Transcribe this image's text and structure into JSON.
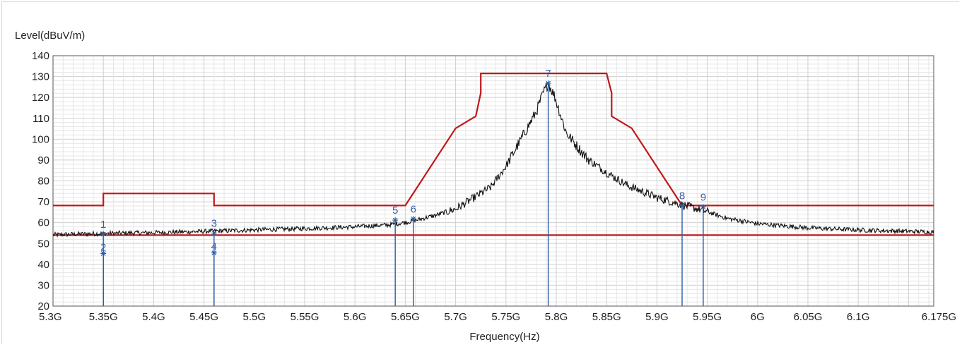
{
  "chart_data": {
    "type": "line",
    "ylabel": "Level(dBuV/m)",
    "xlabel": "Frequency(Hz)",
    "xlim": [
      5.3,
      6.175
    ],
    "ylim": [
      20,
      140
    ],
    "grid": true,
    "y_ticks": [
      {
        "value": 20,
        "label": "20"
      },
      {
        "value": 30,
        "label": "30"
      },
      {
        "value": 40,
        "label": "40"
      },
      {
        "value": 50,
        "label": "50"
      },
      {
        "value": 60,
        "label": "60"
      },
      {
        "value": 70,
        "label": "70"
      },
      {
        "value": 80,
        "label": "80"
      },
      {
        "value": 90,
        "label": "90"
      },
      {
        "value": 100,
        "label": "100"
      },
      {
        "value": 110,
        "label": "110"
      },
      {
        "value": 120,
        "label": "120"
      },
      {
        "value": 130,
        "label": "130"
      },
      {
        "value": 140,
        "label": "140"
      }
    ],
    "x_ticks": [
      {
        "value": 5.3,
        "label": "5.3G"
      },
      {
        "value": 5.35,
        "label": "5.35G"
      },
      {
        "value": 5.4,
        "label": "5.4G"
      },
      {
        "value": 5.45,
        "label": "5.45G"
      },
      {
        "value": 5.5,
        "label": "5.5G"
      },
      {
        "value": 5.55,
        "label": "5.55G"
      },
      {
        "value": 5.6,
        "label": "5.6G"
      },
      {
        "value": 5.65,
        "label": "5.65G"
      },
      {
        "value": 5.7,
        "label": "5.7G"
      },
      {
        "value": 5.75,
        "label": "5.75G"
      },
      {
        "value": 5.8,
        "label": "5.8G"
      },
      {
        "value": 5.85,
        "label": "5.85G"
      },
      {
        "value": 5.9,
        "label": "5.9G"
      },
      {
        "value": 5.95,
        "label": "5.95G"
      },
      {
        "value": 6.0,
        "label": "6G"
      },
      {
        "value": 6.05,
        "label": "6.05G"
      },
      {
        "value": 6.1,
        "label": "6.1G"
      },
      {
        "value": 6.175,
        "label": "6.175G"
      }
    ],
    "colors": {
      "limit": "#c0181a",
      "trace": "#111111",
      "marker_line": "#2a5ea8",
      "marker_label": "#3b5ea8",
      "grid_minor": "#e6e6e6",
      "grid_major": "#cfcfcf",
      "axis": "#555555"
    },
    "series": [
      {
        "role": "upper-limit",
        "points": [
          [
            5.3,
            68.2
          ],
          [
            5.35,
            68.2
          ],
          [
            5.35,
            74
          ],
          [
            5.46,
            74
          ],
          [
            5.46,
            68.2
          ],
          [
            5.65,
            68.2
          ],
          [
            5.7,
            105.2
          ],
          [
            5.72,
            111
          ],
          [
            5.725,
            122.2
          ],
          [
            5.725,
            131.5
          ],
          [
            5.85,
            131.5
          ],
          [
            5.855,
            122.2
          ],
          [
            5.855,
            111
          ],
          [
            5.875,
            105.2
          ],
          [
            5.925,
            68.2
          ],
          [
            6.175,
            68.2
          ]
        ]
      },
      {
        "role": "lower-limit",
        "points": [
          [
            5.3,
            54
          ],
          [
            6.175,
            54
          ]
        ]
      },
      {
        "role": "measurement",
        "anchors": [
          [
            5.3,
            54.2
          ],
          [
            5.35,
            54.8
          ],
          [
            5.4,
            55.2
          ],
          [
            5.45,
            55.8
          ],
          [
            5.5,
            56.5
          ],
          [
            5.55,
            57.2
          ],
          [
            5.6,
            58.0
          ],
          [
            5.635,
            59.0
          ],
          [
            5.655,
            60.5
          ],
          [
            5.68,
            63.5
          ],
          [
            5.7,
            66.5
          ],
          [
            5.72,
            72.5
          ],
          [
            5.735,
            77.0
          ],
          [
            5.75,
            87.0
          ],
          [
            5.765,
            100.0
          ],
          [
            5.78,
            113.0
          ],
          [
            5.787,
            122.0
          ],
          [
            5.792,
            126.8
          ],
          [
            5.798,
            121.0
          ],
          [
            5.81,
            103.0
          ],
          [
            5.83,
            91.0
          ],
          [
            5.85,
            84.0
          ],
          [
            5.87,
            78.0
          ],
          [
            5.9,
            72.0
          ],
          [
            5.925,
            68.5
          ],
          [
            5.945,
            66.0
          ],
          [
            5.97,
            62.0
          ],
          [
            6.0,
            59.5
          ],
          [
            6.05,
            57.5
          ],
          [
            6.1,
            56.5
          ],
          [
            6.175,
            55.5
          ]
        ]
      }
    ],
    "markers": [
      {
        "label": "1",
        "x": 5.35,
        "y": 54.5
      },
      {
        "label": "2",
        "x": 5.35,
        "y": 45.2
      },
      {
        "label": "3",
        "x": 5.46,
        "y": 55.0
      },
      {
        "label": "4",
        "x": 5.46,
        "y": 45.5
      },
      {
        "label": "5",
        "x": 5.64,
        "y": 61.2
      },
      {
        "label": "6",
        "x": 5.658,
        "y": 61.8
      },
      {
        "label": "7",
        "x": 5.792,
        "y": 126.8
      },
      {
        "label": "8",
        "x": 5.925,
        "y": 68.2
      },
      {
        "label": "9",
        "x": 5.946,
        "y": 67.5
      }
    ]
  }
}
